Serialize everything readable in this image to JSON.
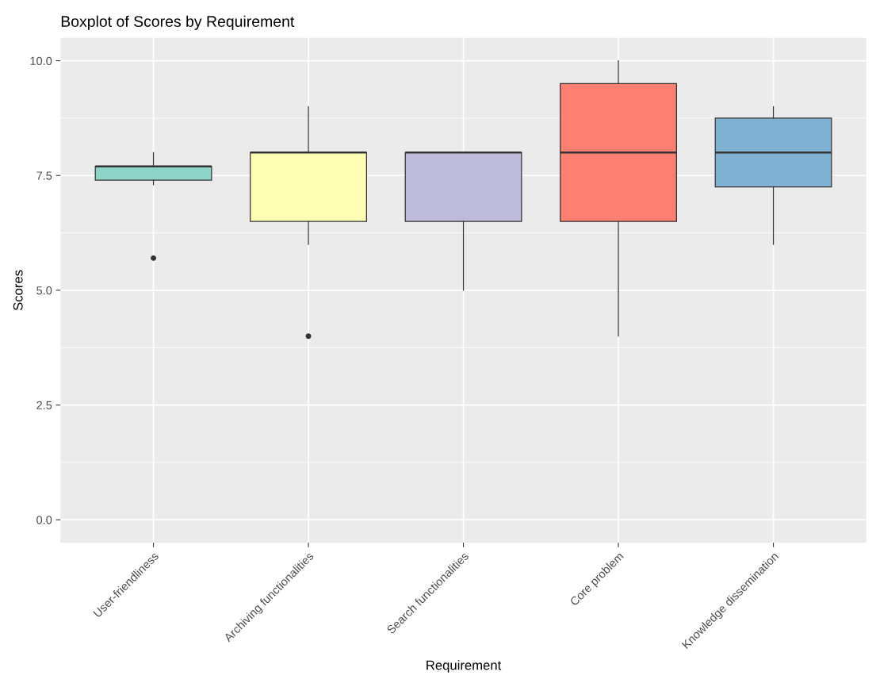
{
  "chart_data": {
    "type": "box",
    "title": "Boxplot of Scores by Requirement",
    "xlabel": "Requirement",
    "ylabel": "Scores",
    "categories": [
      "User-friendliness",
      "Archiving functionalities",
      "Search functionalities",
      "Core problem",
      "Knowledge dissemination"
    ],
    "colors": [
      "#8dd3c7",
      "#ffffb3",
      "#bebada",
      "#fb8072",
      "#80b1d3"
    ],
    "boxes": [
      {
        "low": 7.3,
        "q1": 7.4,
        "median": 7.7,
        "q3": 7.7,
        "high": 8.0,
        "outliers": [
          5.7
        ]
      },
      {
        "low": 6.0,
        "q1": 6.5,
        "median": 8.0,
        "q3": 8.0,
        "high": 9.0,
        "outliers": [
          4.0
        ]
      },
      {
        "low": 5.0,
        "q1": 6.5,
        "median": 8.0,
        "q3": 8.0,
        "high": 8.0
      },
      {
        "low": 4.0,
        "q1": 6.5,
        "median": 8.0,
        "q3": 9.5,
        "high": 10.0
      },
      {
        "low": 6.0,
        "q1": 7.25,
        "median": 8.0,
        "q3": 8.75,
        "high": 9.0
      }
    ],
    "ylim": [
      -0.5,
      10.5
    ],
    "yticks": [
      {
        "value": 0,
        "label": "0.0"
      },
      {
        "value": 2.5,
        "label": "2.5"
      },
      {
        "value": 5,
        "label": "5.0"
      },
      {
        "value": 7.5,
        "label": "7.5"
      },
      {
        "value": 10,
        "label": "10.0"
      }
    ],
    "grid": true
  }
}
